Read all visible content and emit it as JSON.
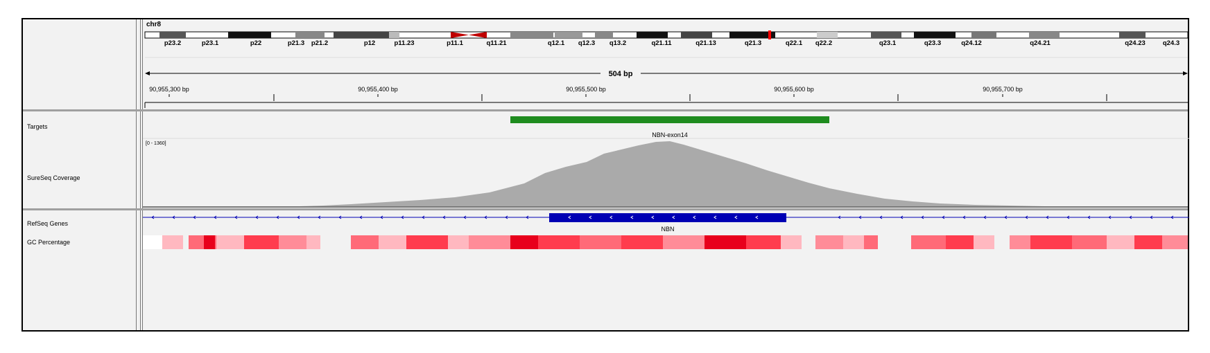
{
  "header": {
    "chromosome": "chr8",
    "span_label": "504 bp",
    "bands": [
      "p23.2",
      "p23.1",
      "p22",
      "p21.3",
      "p21.2",
      "p12",
      "p11.23",
      "p11.1",
      "q11.21",
      "q12.1",
      "q12.3",
      "q13.2",
      "q21.11",
      "q21.13",
      "q21.3",
      "q22.1",
      "q22.2",
      "q23.1",
      "q23.3",
      "q24.12",
      "q24.21",
      "q24.23",
      "q24.3"
    ],
    "ruler_ticks": [
      "90,955,300 bp",
      "90,955,400 bp",
      "90,955,500 bp",
      "90,955,600 bp",
      "90,955,700 bp"
    ]
  },
  "tracks": {
    "targets_label": "Targets",
    "coverage_label": "SureSeq Coverage",
    "coverage_range": "[0 - 1360]",
    "target_feature": "NBN-exon14",
    "refseq_label": "RefSeq Genes",
    "gene_name": "NBN",
    "gc_label": "GC Percentage"
  },
  "colors": {
    "target_bar": "#1f8c1f",
    "coverage": "#aaaaaa",
    "gene": "#0000b4",
    "centromere": "#c00000",
    "current_locus": "#ff0000"
  }
}
